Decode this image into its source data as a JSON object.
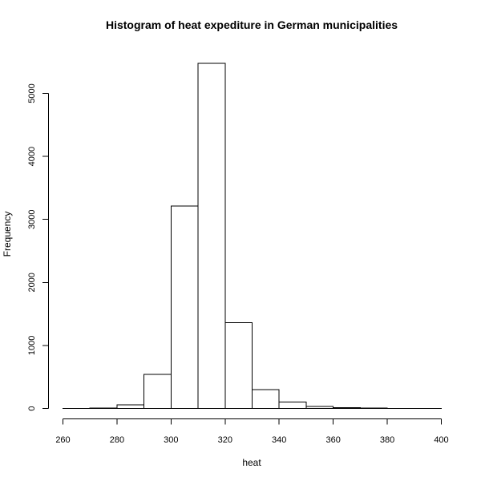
{
  "chart_data": {
    "type": "bar",
    "subtype": "histogram",
    "title": "Histogram of heat expediture in German municipalities",
    "xlabel": "heat",
    "ylabel": "Frequency",
    "bin_edges": [
      260,
      270,
      280,
      290,
      300,
      310,
      320,
      330,
      340,
      350,
      360,
      370,
      380,
      390,
      400
    ],
    "values": [
      2,
      5,
      60,
      540,
      3210,
      5480,
      1360,
      300,
      100,
      30,
      15,
      5,
      3,
      2
    ],
    "xlim": [
      260,
      400
    ],
    "ylim": [
      0,
      5600
    ],
    "x_ticks": [
      260,
      280,
      300,
      320,
      340,
      360,
      380,
      400
    ],
    "y_ticks": [
      0,
      1000,
      2000,
      3000,
      4000,
      5000
    ],
    "grid": false,
    "legend": "none",
    "colors": {
      "bar_fill": "#ffffff",
      "bar_stroke": "#000000",
      "text": "#000000"
    }
  }
}
